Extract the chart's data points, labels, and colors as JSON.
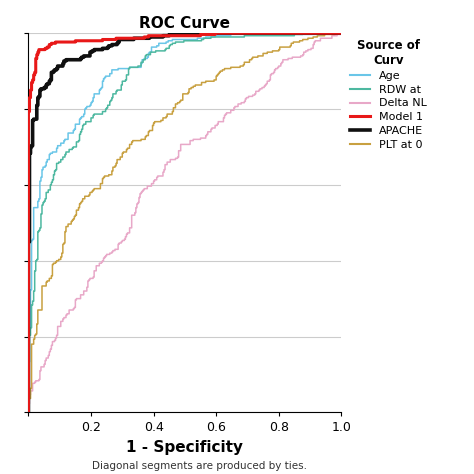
{
  "title": "ROC Curve",
  "xlabel": "1 - Specificity",
  "footnote": "Diagonal segments are produced by ties.",
  "legend_title": "Source of\nCurv",
  "xlim": [
    0.0,
    1.0
  ],
  "ylim": [
    0.0,
    1.0
  ],
  "xticks": [
    0.0,
    0.2,
    0.4,
    0.6,
    0.8,
    1.0
  ],
  "background_color": "#ffffff",
  "grid_color": "#cccccc",
  "curves": [
    {
      "label": "Age",
      "color": "#6ac6e8",
      "linewidth": 1.1,
      "auc": 0.72,
      "seed": 10
    },
    {
      "label": "RDW at",
      "color": "#4db8a0",
      "linewidth": 1.1,
      "auc": 0.7,
      "seed": 20
    },
    {
      "label": "Delta NL",
      "color": "#e8a8c8",
      "linewidth": 1.1,
      "auc": 0.6,
      "seed": 30
    },
    {
      "label": "Model 1",
      "color": "#e81818",
      "linewidth": 2.2,
      "auc": 0.84,
      "seed": 40
    },
    {
      "label": "APACHE",
      "color": "#101010",
      "linewidth": 2.6,
      "auc": 0.8,
      "seed": 50
    },
    {
      "label": "PLT at 0",
      "color": "#c8a040",
      "linewidth": 1.1,
      "auc": 0.63,
      "seed": 60
    }
  ]
}
